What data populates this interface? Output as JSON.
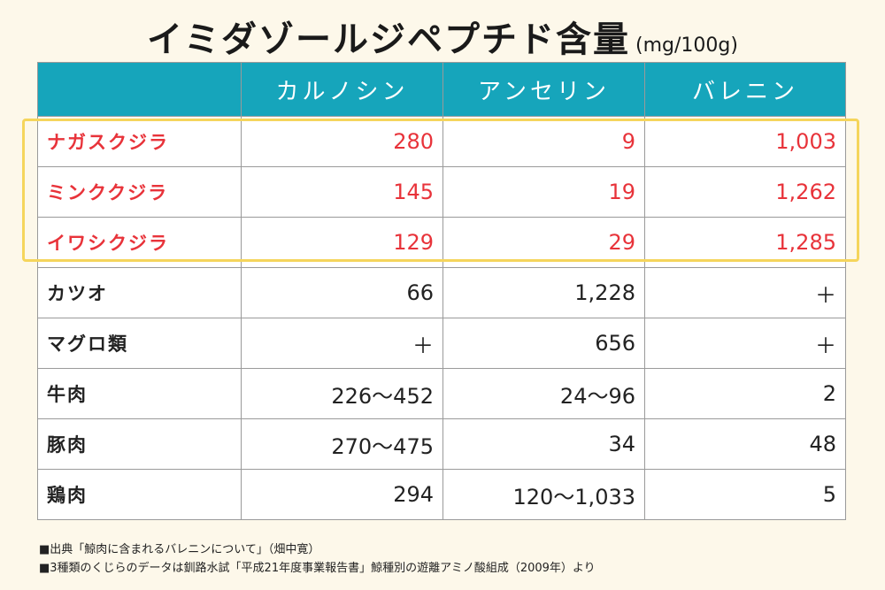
{
  "title": {
    "main": "イミダゾールジペプチド含量",
    "unit": "(mg/100g)"
  },
  "table": {
    "headers": [
      "",
      "カルノシン",
      "アンセリン",
      "バレニン"
    ],
    "rows": [
      {
        "name": "ナガスクジラ",
        "values": [
          "280",
          "9",
          "1,003"
        ],
        "group": "whale"
      },
      {
        "name": "ミンククジラ",
        "values": [
          "145",
          "19",
          "1,262"
        ],
        "group": "whale"
      },
      {
        "name": "イワシクジラ",
        "values": [
          "129",
          "29",
          "1,285"
        ],
        "group": "whale"
      },
      {
        "name": "カツオ",
        "values": [
          "66",
          "1,228",
          "＋"
        ],
        "group": "other"
      },
      {
        "name": "マグロ類",
        "values": [
          "＋",
          "656",
          "＋"
        ],
        "group": "other"
      },
      {
        "name": "牛肉",
        "values": [
          "226〜452",
          "24〜96",
          "2"
        ],
        "group": "other"
      },
      {
        "name": "豚肉",
        "values": [
          "270〜475",
          "34",
          "48"
        ],
        "group": "other"
      },
      {
        "name": "鶏肉",
        "values": [
          "294",
          "120〜1,033",
          "5"
        ],
        "group": "other"
      }
    ]
  },
  "footnotes": [
    "■出典「鯨肉に含まれるバレニンについて」（畑中寛）",
    "■3種類のくじらのデータは釧路水試「平成21年度事業報告書」鯨種別の遊離アミノ酸組成（2009年）より"
  ],
  "colors": {
    "header_bg": "#16a5bb",
    "whale_text": "#e8333a",
    "highlight_border": "#f5d55c",
    "background": "#fdf8ea"
  }
}
